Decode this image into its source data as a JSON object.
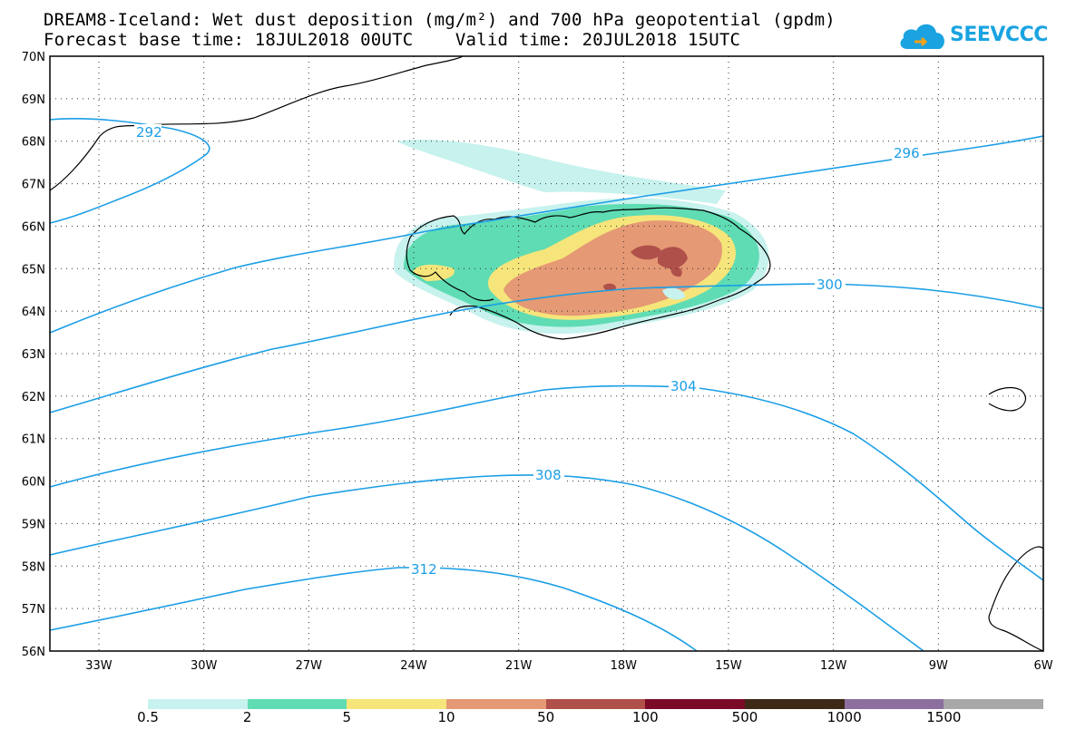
{
  "title": {
    "line1": "DREAM8-Iceland: Wet dust deposition (mg/m²) and 700 hPa geopotential (gpdm)",
    "line2": "Forecast base time: 18JUL2018 00UTC    Valid time: 20JUL2018 15UTC"
  },
  "logo": {
    "text": "SEEVCCC",
    "icon": "cloud-icon",
    "color": "#1aa3e0"
  },
  "map": {
    "lat_labels": [
      "70N",
      "69N",
      "68N",
      "67N",
      "66N",
      "65N",
      "64N",
      "63N",
      "62N",
      "61N",
      "60N",
      "59N",
      "58N",
      "57N",
      "56N"
    ],
    "lon_labels": [
      "33W",
      "30W",
      "27W",
      "24W",
      "21W",
      "18W",
      "15W",
      "12W",
      "9W",
      "6W"
    ],
    "lat_range": [
      56,
      70
    ],
    "lon_range": [
      -34.4,
      -6
    ],
    "gridlines": "dotted"
  },
  "contours": {
    "color": "#1b9ee6",
    "labels": [
      "292",
      "296",
      "300",
      "304",
      "308",
      "312"
    ]
  },
  "colorbar": {
    "labels": [
      "0.5",
      "2",
      "5",
      "10",
      "50",
      "100",
      "500",
      "1000",
      "1500"
    ],
    "colors": [
      "#c7f2ee",
      "#5fdcb3",
      "#f6e57a",
      "#e59974",
      "#b0504a",
      "#7b0a27",
      "#3e2816",
      "#8c6f9f",
      "#a8a8a8"
    ]
  }
}
